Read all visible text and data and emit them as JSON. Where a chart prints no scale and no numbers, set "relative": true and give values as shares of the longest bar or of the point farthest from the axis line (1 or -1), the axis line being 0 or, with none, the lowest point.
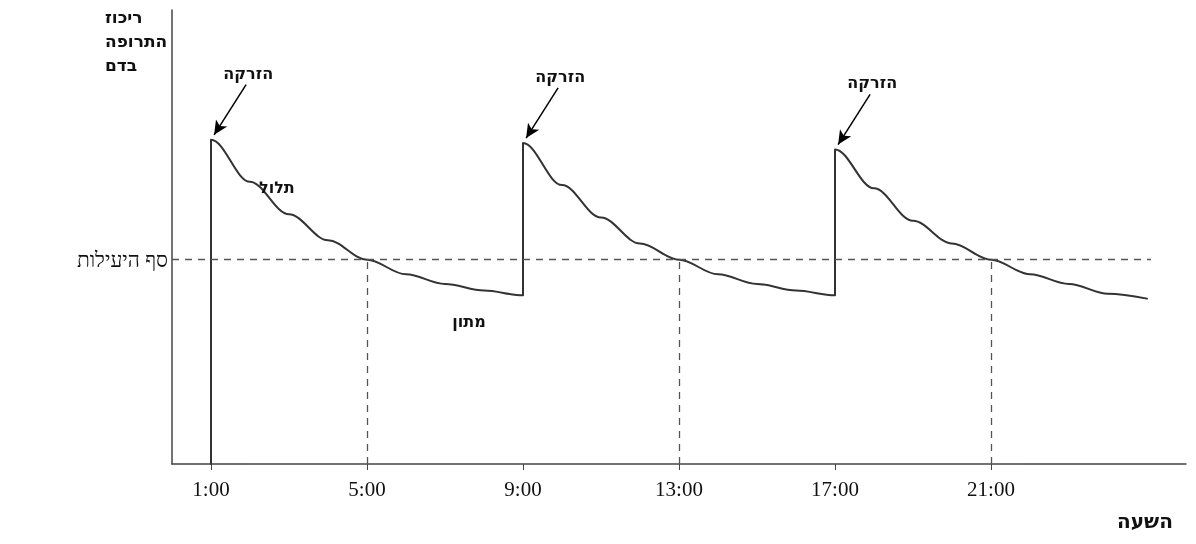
{
  "chart_data": {
    "type": "line",
    "relative": true,
    "ylabel": "ריכוז התרופה בדם",
    "xlabel": "השעה",
    "xlim": [
      0,
      26
    ],
    "xticks": [
      {
        "value": 1,
        "label": "1:00"
      },
      {
        "value": 5,
        "label": "5:00"
      },
      {
        "value": 9,
        "label": "9:00"
      },
      {
        "value": 13,
        "label": "13:00"
      },
      {
        "value": 17,
        "label": "17:00"
      },
      {
        "value": 21,
        "label": "21:00"
      }
    ],
    "x": [
      1,
      1,
      2,
      3,
      4,
      5,
      6,
      7,
      8,
      9,
      9,
      10,
      11,
      12,
      13,
      14,
      15,
      16,
      17,
      17,
      18,
      19,
      20,
      21,
      22,
      23,
      24,
      25
    ],
    "series": [
      {
        "color": "#333333",
        "values": [
          0,
          1,
          0.87,
          0.77,
          0.69,
          0.63,
          0.585,
          0.555,
          0.535,
          0.52,
          0.99,
          0.86,
          0.76,
          0.68,
          0.63,
          0.585,
          0.555,
          0.535,
          0.52,
          0.97,
          0.85,
          0.75,
          0.68,
          0.63,
          0.585,
          0.555,
          0.525,
          0.51
        ]
      }
    ],
    "ref_lines": [
      {
        "axis": "y",
        "value": 0.63,
        "label": "סף היעילות",
        "line_style": "dashed",
        "color": "#555555"
      },
      {
        "axis": "x",
        "value": 5,
        "label": null,
        "line_style": "dashed",
        "color": "#555555"
      },
      {
        "axis": "x",
        "value": 13,
        "label": null,
        "line_style": "dashed",
        "color": "#555555"
      },
      {
        "axis": "x",
        "value": 21,
        "label": null,
        "line_style": "dashed",
        "color": "#555555"
      }
    ],
    "annotations": [
      {
        "text": "הזרקה",
        "x": 1,
        "y": 1
      },
      {
        "text": "הזרקה",
        "x": 9,
        "y": 0.99
      },
      {
        "text": "הזרקה",
        "x": 17,
        "y": 0.97
      },
      {
        "text": "תלול",
        "x": 2,
        "y": 0.87
      },
      {
        "text": "מתון",
        "x": 8,
        "y": 0.535
      }
    ],
    "grid": false
  }
}
